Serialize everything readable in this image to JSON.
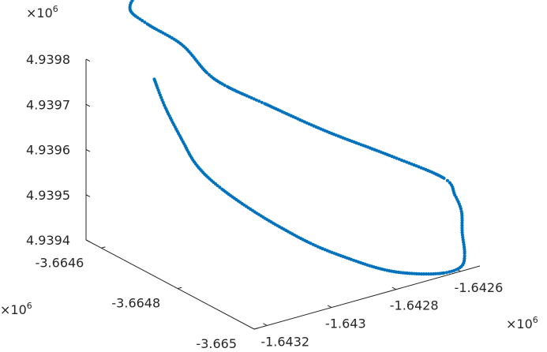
{
  "chart_data": {
    "type": "scatter",
    "title": "",
    "xlabel": "",
    "ylabel": "",
    "zlabel": "",
    "marker_color": "#0072BD",
    "axis_color": "#262626",
    "grid": false,
    "x_axis": {
      "ticks": [
        "-1.6432",
        "-1.643",
        "-1.6428",
        "-1.6426"
      ],
      "multiplier": "×10",
      "exponent": "6"
    },
    "y_axis": {
      "ticks": [
        "-3.665",
        "-3.6648",
        "-3.6646"
      ],
      "multiplier": "×10",
      "exponent": "6"
    },
    "z_axis": {
      "ticks": [
        "4.9394",
        "4.9395",
        "4.9396",
        "4.9397",
        "4.9398"
      ],
      "multiplier": "×10",
      "exponent": "6"
    },
    "z_range": [
      4939400,
      4939800
    ],
    "trajectory": [
      [
        -1643135,
        -3664650,
        4939775
      ],
      [
        -1643160,
        -3664700,
        4939740
      ],
      [
        -1643180,
        -3664760,
        4939700
      ],
      [
        -1643180,
        -3664800,
        4939660
      ],
      [
        -1643150,
        -3664840,
        4939620
      ],
      [
        -1643070,
        -3664880,
        4939560
      ],
      [
        -1642970,
        -3664920,
        4939500
      ],
      [
        -1642880,
        -3664950,
        4939460
      ],
      [
        -1642800,
        -3664970,
        4939430
      ],
      [
        -1642720,
        -3664980,
        4939410
      ],
      [
        -1642640,
        -3664990,
        4939400
      ],
      [
        -1642580,
        -3664985,
        4939400
      ],
      [
        -1642540,
        -3664960,
        4939410
      ],
      [
        -1642500,
        -3664920,
        4939430
      ],
      [
        -1642455,
        -3664880,
        4939450
      ],
      [
        -1642440,
        -3664850,
        4939470
      ],
      [
        -1642450,
        -3664830,
        4939500
      ],
      [
        -1642560,
        -3664780,
        4939550
      ],
      [
        -1642700,
        -3664730,
        4939610
      ],
      [
        -1642840,
        -3664690,
        4939680
      ],
      [
        -1642920,
        -3664660,
        4939720
      ],
      [
        -1642960,
        -3664640,
        4939750
      ],
      [
        -1642990,
        -3664600,
        4939800
      ],
      [
        -1643050,
        -3664560,
        4939840
      ],
      [
        -1643080,
        -3664540,
        4939870
      ],
      [
        -1643030,
        -3664530,
        4939890
      ],
      [
        -1642900,
        -3664540,
        4939880
      ],
      [
        -1642800,
        -3664560,
        4939860
      ],
      [
        -1642770,
        -3664560,
        4939848
      ],
      [
        -1642790,
        -3664545,
        4939855
      ],
      [
        -1642740,
        -3664560,
        4939845
      ]
    ]
  }
}
